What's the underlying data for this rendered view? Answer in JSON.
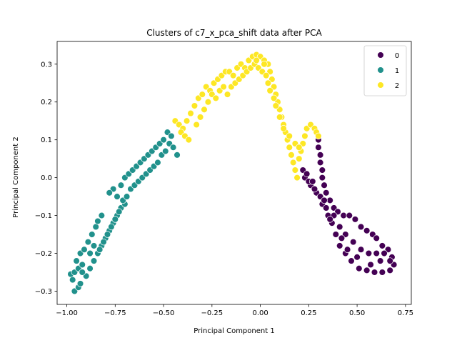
{
  "chart_data": {
    "type": "scatter",
    "title": "Clusters of c7_x_pca_shift data after PCA",
    "xlabel": "Principal Component 1",
    "ylabel": "Principal Component 2",
    "xlim": [
      -1.05,
      0.78
    ],
    "ylim": [
      -0.335,
      0.36
    ],
    "xticks": [
      -1.0,
      -0.75,
      -0.5,
      -0.25,
      0.0,
      0.25,
      0.5,
      0.75
    ],
    "xtick_labels": [
      "−1.00",
      "−0.75",
      "−0.50",
      "−0.25",
      "0.00",
      "0.25",
      "0.50",
      "0.75"
    ],
    "yticks": [
      -0.3,
      -0.2,
      -0.1,
      0.0,
      0.1,
      0.2,
      0.3
    ],
    "ytick_labels": [
      "−0.3",
      "−0.2",
      "−0.1",
      "0.0",
      "0.1",
      "0.2",
      "0.3"
    ],
    "grid": false,
    "legend_position": "top-right",
    "series": [
      {
        "name": "0",
        "color": "#440154",
        "points": [
          [
            0.3,
            0.1
          ],
          [
            0.3,
            0.08
          ],
          [
            0.31,
            0.06
          ],
          [
            0.31,
            0.04
          ],
          [
            0.32,
            0.02
          ],
          [
            0.32,
            0.0
          ],
          [
            0.33,
            -0.02
          ],
          [
            0.34,
            -0.04
          ],
          [
            0.36,
            -0.06
          ],
          [
            0.38,
            -0.08
          ],
          [
            0.4,
            -0.09
          ],
          [
            0.43,
            -0.1
          ],
          [
            0.46,
            -0.1
          ],
          [
            0.49,
            -0.11
          ],
          [
            0.52,
            -0.13
          ],
          [
            0.55,
            -0.14
          ],
          [
            0.58,
            -0.15
          ],
          [
            0.6,
            -0.16
          ],
          [
            0.63,
            -0.18
          ],
          [
            0.66,
            -0.19
          ],
          [
            0.68,
            -0.21
          ],
          [
            0.69,
            -0.23
          ],
          [
            0.67,
            -0.245
          ],
          [
            0.63,
            -0.25
          ],
          [
            0.59,
            -0.25
          ],
          [
            0.55,
            -0.245
          ],
          [
            0.51,
            -0.24
          ],
          [
            0.47,
            -0.22
          ],
          [
            0.44,
            -0.2
          ],
          [
            0.41,
            -0.18
          ],
          [
            0.39,
            -0.15
          ],
          [
            0.37,
            -0.12
          ],
          [
            0.35,
            -0.1
          ],
          [
            0.32,
            -0.07
          ],
          [
            0.29,
            -0.04
          ],
          [
            0.26,
            -0.02
          ],
          [
            0.23,
            0.0
          ],
          [
            0.22,
            0.02
          ],
          [
            0.25,
            -0.01
          ],
          [
            0.28,
            -0.03
          ],
          [
            0.31,
            -0.05
          ],
          [
            0.34,
            -0.08
          ],
          [
            0.38,
            -0.1
          ],
          [
            0.41,
            -0.13
          ],
          [
            0.44,
            -0.15
          ],
          [
            0.48,
            -0.17
          ],
          [
            0.52,
            -0.19
          ],
          [
            0.56,
            -0.2
          ],
          [
            0.6,
            -0.2
          ],
          [
            0.64,
            -0.2
          ],
          [
            0.67,
            -0.22
          ],
          [
            0.45,
            -0.19
          ],
          [
            0.42,
            -0.16
          ],
          [
            0.36,
            -0.11
          ],
          [
            0.33,
            -0.06
          ],
          [
            0.27,
            -0.01
          ],
          [
            0.24,
            0.01
          ],
          [
            0.5,
            -0.21
          ],
          [
            0.62,
            -0.22
          ],
          [
            0.57,
            -0.23
          ]
        ]
      },
      {
        "name": "1",
        "color": "#21918c",
        "points": [
          [
            -0.96,
            -0.3
          ],
          [
            -0.94,
            -0.29
          ],
          [
            -0.93,
            -0.28
          ],
          [
            -0.98,
            -0.255
          ],
          [
            -0.96,
            -0.25
          ],
          [
            -0.94,
            -0.24
          ],
          [
            -0.92,
            -0.23
          ],
          [
            -0.95,
            -0.22
          ],
          [
            -0.93,
            -0.2
          ],
          [
            -0.91,
            -0.19
          ],
          [
            -0.89,
            -0.17
          ],
          [
            -0.87,
            -0.15
          ],
          [
            -0.85,
            -0.13
          ],
          [
            -0.84,
            -0.115
          ],
          [
            -0.82,
            -0.1
          ],
          [
            -0.9,
            -0.26
          ],
          [
            -0.88,
            -0.24
          ],
          [
            -0.86,
            -0.22
          ],
          [
            -0.84,
            -0.2
          ],
          [
            -0.82,
            -0.18
          ],
          [
            -0.8,
            -0.16
          ],
          [
            -0.78,
            -0.14
          ],
          [
            -0.76,
            -0.12
          ],
          [
            -0.74,
            -0.1
          ],
          [
            -0.72,
            -0.08
          ],
          [
            -0.7,
            -0.07
          ],
          [
            -0.76,
            -0.03
          ],
          [
            -0.74,
            -0.05
          ],
          [
            -0.78,
            -0.04
          ],
          [
            -0.72,
            -0.02
          ],
          [
            -0.7,
            0.0
          ],
          [
            -0.68,
            0.01
          ],
          [
            -0.66,
            0.02
          ],
          [
            -0.64,
            0.03
          ],
          [
            -0.62,
            0.04
          ],
          [
            -0.6,
            0.05
          ],
          [
            -0.58,
            0.06
          ],
          [
            -0.56,
            0.07
          ],
          [
            -0.54,
            0.08
          ],
          [
            -0.52,
            0.09
          ],
          [
            -0.5,
            0.1
          ],
          [
            -0.48,
            0.12
          ],
          [
            -0.46,
            0.11
          ],
          [
            -0.83,
            -0.19
          ],
          [
            -0.81,
            -0.17
          ],
          [
            -0.79,
            -0.15
          ],
          [
            -0.77,
            -0.13
          ],
          [
            -0.75,
            -0.11
          ],
          [
            -0.73,
            -0.09
          ],
          [
            -0.71,
            -0.06
          ],
          [
            -0.69,
            -0.05
          ],
          [
            -0.67,
            -0.03
          ],
          [
            -0.65,
            -0.02
          ],
          [
            -0.63,
            -0.01
          ],
          [
            -0.61,
            0.0
          ],
          [
            -0.59,
            0.01
          ],
          [
            -0.57,
            0.02
          ],
          [
            -0.55,
            0.03
          ],
          [
            -0.53,
            0.04
          ],
          [
            -0.51,
            0.06
          ],
          [
            -0.49,
            0.07
          ],
          [
            -0.47,
            0.09
          ],
          [
            -0.45,
            0.08
          ],
          [
            -0.43,
            0.06
          ],
          [
            -0.97,
            -0.27
          ],
          [
            -0.92,
            -0.25
          ],
          [
            -0.88,
            -0.2
          ],
          [
            -0.86,
            -0.18
          ]
        ]
      },
      {
        "name": "2",
        "color": "#fde725",
        "points": [
          [
            -0.44,
            0.15
          ],
          [
            -0.42,
            0.14
          ],
          [
            -0.4,
            0.13
          ],
          [
            -0.38,
            0.15
          ],
          [
            -0.36,
            0.17
          ],
          [
            -0.34,
            0.19
          ],
          [
            -0.32,
            0.21
          ],
          [
            -0.3,
            0.22
          ],
          [
            -0.28,
            0.24
          ],
          [
            -0.26,
            0.23
          ],
          [
            -0.24,
            0.25
          ],
          [
            -0.22,
            0.26
          ],
          [
            -0.2,
            0.27
          ],
          [
            -0.18,
            0.28
          ],
          [
            -0.16,
            0.28
          ],
          [
            -0.14,
            0.27
          ],
          [
            -0.12,
            0.29
          ],
          [
            -0.1,
            0.3
          ],
          [
            -0.08,
            0.29
          ],
          [
            -0.06,
            0.31
          ],
          [
            -0.04,
            0.32
          ],
          [
            -0.02,
            0.325
          ],
          [
            0.0,
            0.32
          ],
          [
            0.02,
            0.31
          ],
          [
            0.04,
            0.3
          ],
          [
            0.05,
            0.28
          ],
          [
            0.06,
            0.26
          ],
          [
            0.07,
            0.24
          ],
          [
            0.08,
            0.22
          ],
          [
            0.09,
            0.2
          ],
          [
            0.1,
            0.18
          ],
          [
            0.11,
            0.16
          ],
          [
            0.12,
            0.14
          ],
          [
            0.13,
            0.12
          ],
          [
            0.14,
            0.1
          ],
          [
            0.15,
            0.08
          ],
          [
            0.16,
            0.06
          ],
          [
            0.17,
            0.04
          ],
          [
            0.18,
            0.02
          ],
          [
            0.19,
            0.0
          ],
          [
            0.2,
            0.05
          ],
          [
            0.21,
            0.07
          ],
          [
            0.22,
            0.09
          ],
          [
            0.23,
            0.11
          ],
          [
            0.24,
            0.13
          ],
          [
            0.26,
            0.14
          ],
          [
            0.28,
            0.13
          ],
          [
            0.29,
            0.12
          ],
          [
            0.3,
            0.11
          ],
          [
            -0.33,
            0.14
          ],
          [
            -0.31,
            0.16
          ],
          [
            -0.29,
            0.18
          ],
          [
            -0.27,
            0.2
          ],
          [
            -0.25,
            0.22
          ],
          [
            -0.23,
            0.21
          ],
          [
            -0.21,
            0.23
          ],
          [
            -0.19,
            0.24
          ],
          [
            -0.17,
            0.22
          ],
          [
            -0.15,
            0.24
          ],
          [
            -0.13,
            0.25
          ],
          [
            -0.11,
            0.26
          ],
          [
            -0.09,
            0.27
          ],
          [
            -0.07,
            0.28
          ],
          [
            -0.05,
            0.29
          ],
          [
            -0.03,
            0.3
          ],
          [
            -0.01,
            0.29
          ],
          [
            0.01,
            0.28
          ],
          [
            0.03,
            0.27
          ],
          [
            0.04,
            0.25
          ],
          [
            0.05,
            0.23
          ],
          [
            0.07,
            0.21
          ],
          [
            0.08,
            0.19
          ],
          [
            0.1,
            0.16
          ],
          [
            0.12,
            0.13
          ],
          [
            0.15,
            0.11
          ],
          [
            0.18,
            0.09
          ],
          [
            0.2,
            0.08
          ],
          [
            0.02,
            0.3
          ],
          [
            -0.02,
            0.31
          ],
          [
            -0.41,
            0.12
          ],
          [
            -0.39,
            0.11
          ],
          [
            -0.37,
            0.1
          ]
        ]
      }
    ]
  }
}
